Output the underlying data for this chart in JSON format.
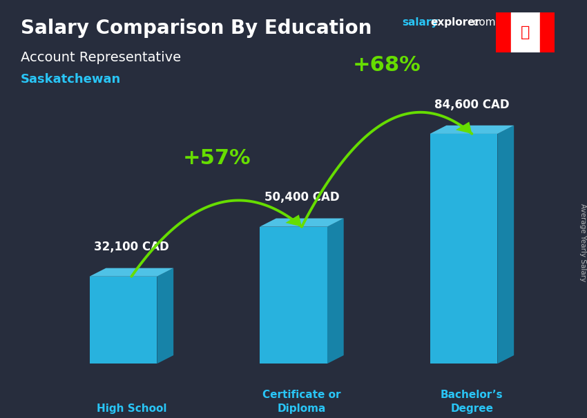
{
  "title": "Salary Comparison By Education",
  "subtitle": "Account Representative",
  "location": "Saskatchewan",
  "ylabel": "Average Yearly Salary",
  "categories": [
    "High School",
    "Certificate or\nDiploma",
    "Bachelor’s\nDegree"
  ],
  "values": [
    32100,
    50400,
    84600
  ],
  "labels": [
    "32,100 CAD",
    "50,400 CAD",
    "84,600 CAD"
  ],
  "pct_changes": [
    "+57%",
    "+68%"
  ],
  "bar_color_face": "#29C5F6",
  "bar_color_dark": "#1590B8",
  "bar_color_top": "#55D8FF",
  "bg_dark": "#1e2030",
  "title_color": "#FFFFFF",
  "subtitle_color": "#FFFFFF",
  "location_color": "#29C5F6",
  "label_color": "#FFFFFF",
  "category_color": "#29C5F6",
  "arrow_color": "#66DD00",
  "pct_color": "#66DD00",
  "website_salary_color": "#29C5F6",
  "website_rest_color": "#FFFFFF",
  "ylabel_color": "#CCCCCC",
  "figsize": [
    8.5,
    6.06
  ],
  "dpi": 100
}
